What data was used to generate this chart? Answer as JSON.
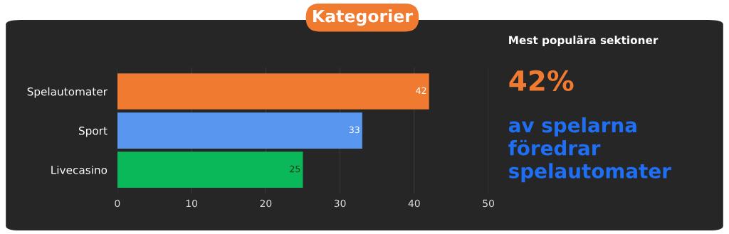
{
  "chart_data": {
    "type": "bar",
    "orientation": "horizontal",
    "title": "Kategorier",
    "categories": [
      "Spelautomater",
      "Sport",
      "Livecasino"
    ],
    "values": [
      42,
      33,
      25
    ],
    "colors": [
      "#f07a30",
      "#5896f0",
      "#0ab85a"
    ],
    "xlim": [
      0,
      50
    ],
    "xticks": [
      0,
      10,
      20,
      30,
      40,
      50
    ],
    "grid": "x",
    "data_labels": true,
    "annotations": [
      "Mest populära sektioner",
      "42%",
      "av spelarna\nföredrar\nspelautomater"
    ]
  }
}
